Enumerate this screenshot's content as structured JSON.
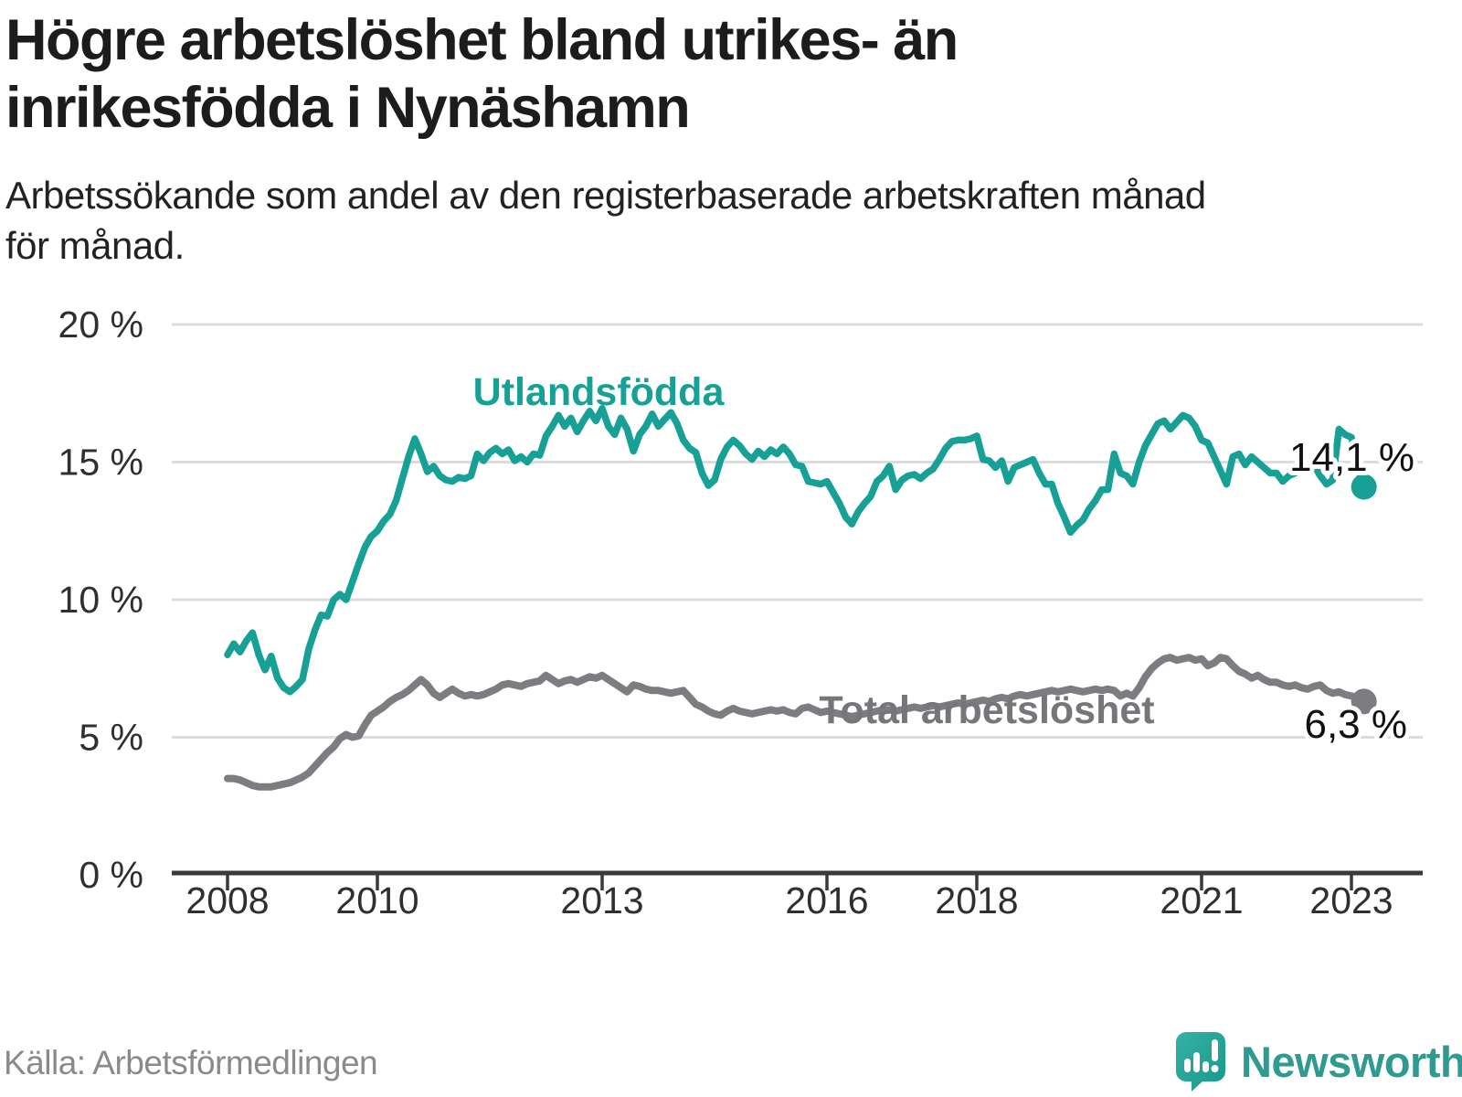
{
  "header": {
    "title_lines": [
      "Högre arbetslöshet bland utrikes- än",
      "inrikesfödda i Nynäshamn"
    ],
    "subtitle_lines": [
      "Arbetssökande som andel av den registerbaserade arbetskraften månad",
      "för månad."
    ]
  },
  "footer": {
    "source": "Källa: Arbetsförmedlingen",
    "logo_text": "Newsworthy"
  },
  "colors": {
    "teal_line": "#16a096",
    "gray_line": "#7d7d81",
    "gray_label": "#76767a",
    "gridline": "#dcdcdc",
    "axis": "#3a3a3a",
    "logo_teal_light": "#36b0a4",
    "logo_teal_dark": "#17988c",
    "logo_text_color": "#2e9a90"
  },
  "chart_data": {
    "type": "line",
    "title": "Högre arbetslöshet bland utrikes- än inrikesfödda i Nynäshamn",
    "subtitle": "Arbetssökande som andel av den registerbaserade arbetskraften månad för månad.",
    "xlabel": "",
    "ylabel": "",
    "ylim": [
      0,
      20
    ],
    "grid": "horizontal",
    "legend_position": "inline-labels",
    "x_start_year": 2008,
    "points_per_year": 12,
    "x_tick_years": [
      2008,
      2010,
      2013,
      2016,
      2018,
      2021,
      2023
    ],
    "y_ticks": [
      {
        "value": 0,
        "label": "0 %"
      },
      {
        "value": 5,
        "label": "5 %"
      },
      {
        "value": 10,
        "label": "10 %"
      },
      {
        "value": 15,
        "label": "15 %"
      },
      {
        "value": 20,
        "label": "20 %"
      }
    ],
    "series": [
      {
        "name": "Utlandsfödda",
        "end_label": "14,1 %",
        "end_value": 14.1,
        "values": [
          8.0,
          8.4,
          8.1,
          8.5,
          8.8,
          8.0,
          7.45,
          7.95,
          7.15,
          6.8,
          6.65,
          6.85,
          7.1,
          8.2,
          8.9,
          9.45,
          9.4,
          10.0,
          10.2,
          10.0,
          10.65,
          11.3,
          11.9,
          12.3,
          12.5,
          12.85,
          13.1,
          13.6,
          14.4,
          15.2,
          15.85,
          15.3,
          14.65,
          14.85,
          14.5,
          14.35,
          14.3,
          14.45,
          14.4,
          14.5,
          15.3,
          15.05,
          15.35,
          15.5,
          15.3,
          15.45,
          15.05,
          15.2,
          15.0,
          15.3,
          15.25,
          15.95,
          16.3,
          16.7,
          16.3,
          16.6,
          16.1,
          16.5,
          16.85,
          16.5,
          16.95,
          16.3,
          16.0,
          16.6,
          16.2,
          15.4,
          16.0,
          16.3,
          16.75,
          16.3,
          16.55,
          16.8,
          16.4,
          15.8,
          15.5,
          15.35,
          14.6,
          14.15,
          14.35,
          15.1,
          15.55,
          15.8,
          15.6,
          15.3,
          15.1,
          15.4,
          15.2,
          15.45,
          15.3,
          15.55,
          15.3,
          14.9,
          14.85,
          14.3,
          14.25,
          14.2,
          14.3,
          13.9,
          13.5,
          13.0,
          12.75,
          13.2,
          13.5,
          13.75,
          14.3,
          14.5,
          14.85,
          14.0,
          14.35,
          14.5,
          14.55,
          14.4,
          14.6,
          14.75,
          15.1,
          15.5,
          15.75,
          15.8,
          15.8,
          15.85,
          15.95,
          15.1,
          15.05,
          14.8,
          15.05,
          14.3,
          14.8,
          14.9,
          15.0,
          15.1,
          14.6,
          14.2,
          14.2,
          13.5,
          13.0,
          12.45,
          12.7,
          12.9,
          13.3,
          13.6,
          14.0,
          14.0,
          15.3,
          14.6,
          14.5,
          14.2,
          15.0,
          15.6,
          16.0,
          16.4,
          16.5,
          16.2,
          16.45,
          16.7,
          16.6,
          16.3,
          15.8,
          15.7,
          15.2,
          14.7,
          14.2,
          15.2,
          15.3,
          14.9,
          15.2,
          15.0,
          14.8,
          14.6,
          14.6,
          14.3,
          14.5,
          14.6,
          14.9,
          14.8,
          14.9,
          14.5,
          14.2,
          14.35,
          16.2,
          16.0,
          15.9,
          14.8,
          14.1
        ]
      },
      {
        "name": "Total arbetslöshet",
        "end_label": "6,3 %",
        "end_value": 6.3,
        "values": [
          3.5,
          3.5,
          3.45,
          3.35,
          3.25,
          3.2,
          3.2,
          3.2,
          3.25,
          3.3,
          3.35,
          3.45,
          3.55,
          3.7,
          3.95,
          4.2,
          4.45,
          4.65,
          4.95,
          5.1,
          5.0,
          5.05,
          5.45,
          5.8,
          5.95,
          6.1,
          6.3,
          6.45,
          6.55,
          6.7,
          6.9,
          7.1,
          6.9,
          6.6,
          6.45,
          6.6,
          6.75,
          6.6,
          6.5,
          6.55,
          6.5,
          6.55,
          6.65,
          6.75,
          6.9,
          6.95,
          6.9,
          6.85,
          6.95,
          7.0,
          7.05,
          7.25,
          7.1,
          6.95,
          7.05,
          7.1,
          7.0,
          7.1,
          7.2,
          7.15,
          7.25,
          7.1,
          6.95,
          6.8,
          6.65,
          6.9,
          6.85,
          6.75,
          6.7,
          6.7,
          6.65,
          6.6,
          6.65,
          6.7,
          6.45,
          6.2,
          6.1,
          5.95,
          5.85,
          5.8,
          5.95,
          6.05,
          5.95,
          5.9,
          5.85,
          5.9,
          5.95,
          6.0,
          5.95,
          6.0,
          5.9,
          5.85,
          6.05,
          6.1,
          6.0,
          5.9,
          5.95,
          5.9,
          5.85,
          5.8,
          5.75,
          5.8,
          5.85,
          5.9,
          5.95,
          6.0,
          6.0,
          5.95,
          6.0,
          6.05,
          6.1,
          6.05,
          6.1,
          6.15,
          6.1,
          6.15,
          6.2,
          6.25,
          6.2,
          6.25,
          6.3,
          6.35,
          6.3,
          6.4,
          6.45,
          6.4,
          6.5,
          6.55,
          6.5,
          6.55,
          6.6,
          6.65,
          6.7,
          6.65,
          6.7,
          6.75,
          6.7,
          6.65,
          6.7,
          6.75,
          6.7,
          6.75,
          6.7,
          6.5,
          6.6,
          6.5,
          6.8,
          7.2,
          7.5,
          7.7,
          7.85,
          7.9,
          7.8,
          7.85,
          7.9,
          7.8,
          7.85,
          7.6,
          7.7,
          7.9,
          7.85,
          7.6,
          7.4,
          7.3,
          7.15,
          7.25,
          7.1,
          7.0,
          7.0,
          6.9,
          6.85,
          6.9,
          6.8,
          6.75,
          6.85,
          6.9,
          6.7,
          6.6,
          6.65,
          6.55,
          6.5,
          6.45,
          6.3
        ]
      }
    ]
  }
}
